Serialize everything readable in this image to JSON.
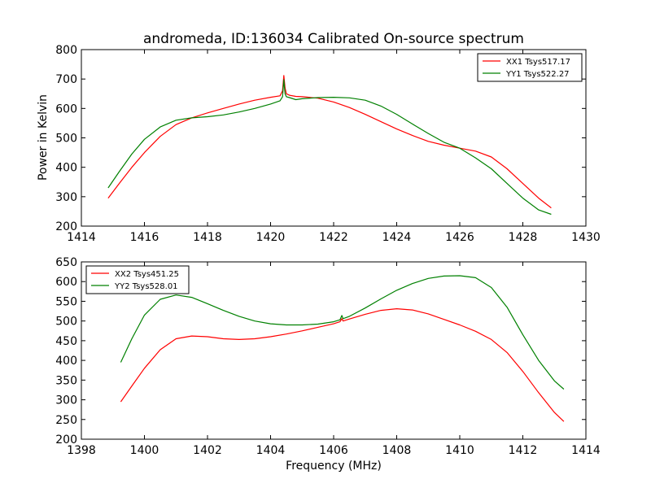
{
  "figure": {
    "title": "andromeda, ID:136034 Calibrated On-source spectrum"
  },
  "chart_data": [
    {
      "type": "line",
      "title": "andromeda, ID:136034 Calibrated On-source spectrum",
      "xlabel": "",
      "ylabel": "Power in Kelvin",
      "xlim": [
        1414,
        1430
      ],
      "ylim": [
        200,
        800
      ],
      "xticks": [
        1414,
        1416,
        1418,
        1420,
        1422,
        1424,
        1426,
        1428,
        1430
      ],
      "yticks": [
        200,
        300,
        400,
        500,
        600,
        700,
        800
      ],
      "grid": false,
      "legend_position": "top-right",
      "series": [
        {
          "name": "XX1 Tsys517.17",
          "color": "#ff0000",
          "x": [
            1414.85,
            1415.2,
            1415.6,
            1416.0,
            1416.5,
            1417.0,
            1417.5,
            1418.0,
            1418.5,
            1419.0,
            1419.5,
            1420.0,
            1420.3,
            1420.38,
            1420.42,
            1420.46,
            1420.5,
            1420.6,
            1420.8,
            1421.0,
            1421.5,
            1422.0,
            1422.5,
            1423.0,
            1423.5,
            1424.0,
            1424.5,
            1425.0,
            1425.5,
            1426.0,
            1426.5,
            1427.0,
            1427.5,
            1428.0,
            1428.5,
            1428.9
          ],
          "values": [
            295,
            345,
            400,
            450,
            505,
            545,
            568,
            585,
            600,
            615,
            628,
            638,
            643,
            660,
            712,
            670,
            650,
            645,
            641,
            640,
            635,
            622,
            603,
            580,
            555,
            530,
            508,
            488,
            475,
            465,
            455,
            435,
            395,
            345,
            295,
            262
          ]
        },
        {
          "name": "YY1 Tsys522.27",
          "color": "#008000",
          "x": [
            1414.85,
            1415.2,
            1415.6,
            1416.0,
            1416.5,
            1417.0,
            1417.5,
            1418.0,
            1418.5,
            1419.0,
            1419.5,
            1420.0,
            1420.3,
            1420.38,
            1420.42,
            1420.46,
            1420.5,
            1420.6,
            1420.8,
            1421.0,
            1421.5,
            1422.0,
            1422.5,
            1423.0,
            1423.5,
            1424.0,
            1424.5,
            1425.0,
            1425.5,
            1426.0,
            1426.5,
            1427.0,
            1427.5,
            1428.0,
            1428.5,
            1428.9
          ],
          "values": [
            330,
            385,
            445,
            495,
            537,
            560,
            568,
            572,
            578,
            588,
            600,
            615,
            626,
            640,
            698,
            650,
            640,
            637,
            630,
            633,
            637,
            638,
            636,
            628,
            608,
            580,
            547,
            515,
            485,
            465,
            432,
            395,
            345,
            295,
            255,
            240
          ]
        }
      ]
    },
    {
      "type": "line",
      "title": "",
      "xlabel": "Frequency (MHz)",
      "ylabel": "",
      "xlim": [
        1398,
        1414
      ],
      "ylim": [
        200,
        650
      ],
      "xticks": [
        1398,
        1400,
        1402,
        1404,
        1406,
        1408,
        1410,
        1412,
        1414
      ],
      "yticks": [
        200,
        250,
        300,
        350,
        400,
        450,
        500,
        550,
        600,
        650
      ],
      "grid": false,
      "legend_position": "top-left",
      "series": [
        {
          "name": "XX2 Tsys451.25",
          "color": "#ff0000",
          "x": [
            1399.25,
            1399.6,
            1400.0,
            1400.5,
            1401.0,
            1401.5,
            1402.0,
            1402.5,
            1403.0,
            1403.5,
            1404.0,
            1404.5,
            1405.0,
            1405.5,
            1406.0,
            1406.2,
            1406.26,
            1406.3,
            1406.5,
            1407.0,
            1407.5,
            1408.0,
            1408.5,
            1409.0,
            1409.5,
            1410.0,
            1410.5,
            1411.0,
            1411.5,
            1412.0,
            1412.5,
            1413.0,
            1413.3
          ],
          "values": [
            295,
            335,
            380,
            427,
            455,
            462,
            460,
            455,
            453,
            455,
            460,
            467,
            475,
            484,
            493,
            498,
            506,
            500,
            505,
            517,
            527,
            531,
            528,
            518,
            504,
            490,
            474,
            453,
            420,
            372,
            318,
            268,
            245
          ]
        },
        {
          "name": "YY2 Tsys528.01",
          "color": "#008000",
          "x": [
            1399.25,
            1399.6,
            1400.0,
            1400.5,
            1401.0,
            1401.5,
            1402.0,
            1402.5,
            1403.0,
            1403.5,
            1404.0,
            1404.5,
            1405.0,
            1405.5,
            1406.0,
            1406.2,
            1406.26,
            1406.3,
            1406.5,
            1407.0,
            1407.5,
            1408.0,
            1408.5,
            1409.0,
            1409.5,
            1410.0,
            1410.5,
            1411.0,
            1411.5,
            1412.0,
            1412.5,
            1413.0,
            1413.3
          ],
          "values": [
            395,
            455,
            515,
            555,
            566,
            560,
            544,
            527,
            512,
            500,
            493,
            490,
            490,
            492,
            498,
            503,
            514,
            506,
            512,
            533,
            556,
            578,
            595,
            608,
            614,
            615,
            610,
            585,
            535,
            465,
            400,
            348,
            327
          ]
        }
      ]
    }
  ]
}
